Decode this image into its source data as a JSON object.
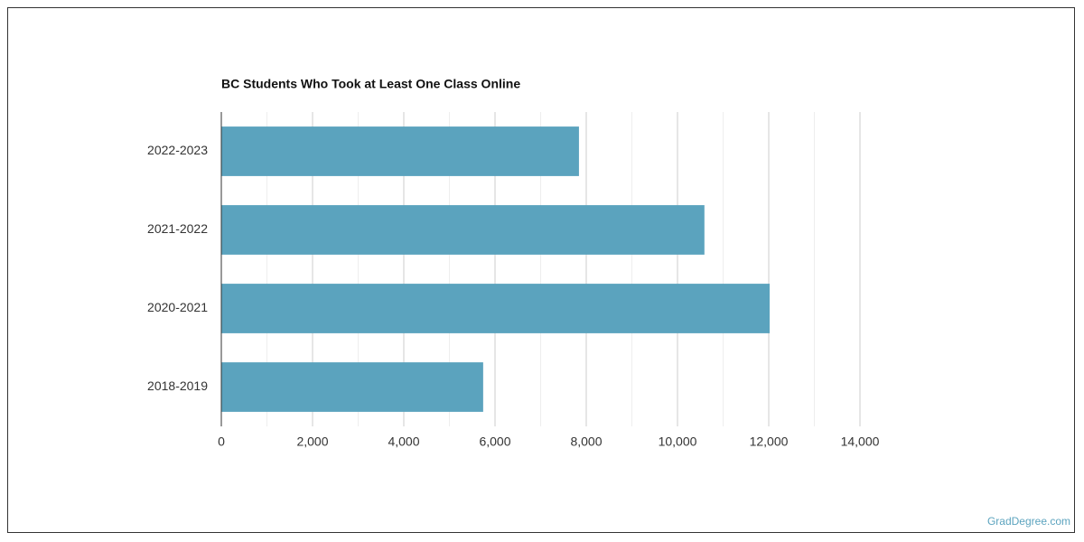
{
  "chart_data": {
    "type": "hbar",
    "title": "BC Students Who Took at Least One Class Online",
    "categories": [
      "2022-2023",
      "2021-2022",
      "2020-2021",
      "2018-2019"
    ],
    "values": [
      7840,
      10590,
      12020,
      5740
    ],
    "color": "#5ba3be",
    "xlim": [
      0,
      14000
    ],
    "xticks": [
      0,
      {
        "value": 2000,
        "label": "2,000"
      },
      {
        "value": 4000,
        "label": "4,000"
      },
      {
        "value": 6000,
        "label": "6,000"
      },
      {
        "value": 8000,
        "label": "8,000"
      },
      {
        "value": 10000,
        "label": "10,000"
      },
      {
        "value": 12000,
        "label": "12,000"
      },
      {
        "value": 14000,
        "label": "14,000"
      }
    ],
    "minor_xticks": [
      1000,
      3000,
      5000,
      7000,
      9000,
      11000,
      13000
    ],
    "grid": true
  },
  "watermark": "GradDegree.com"
}
